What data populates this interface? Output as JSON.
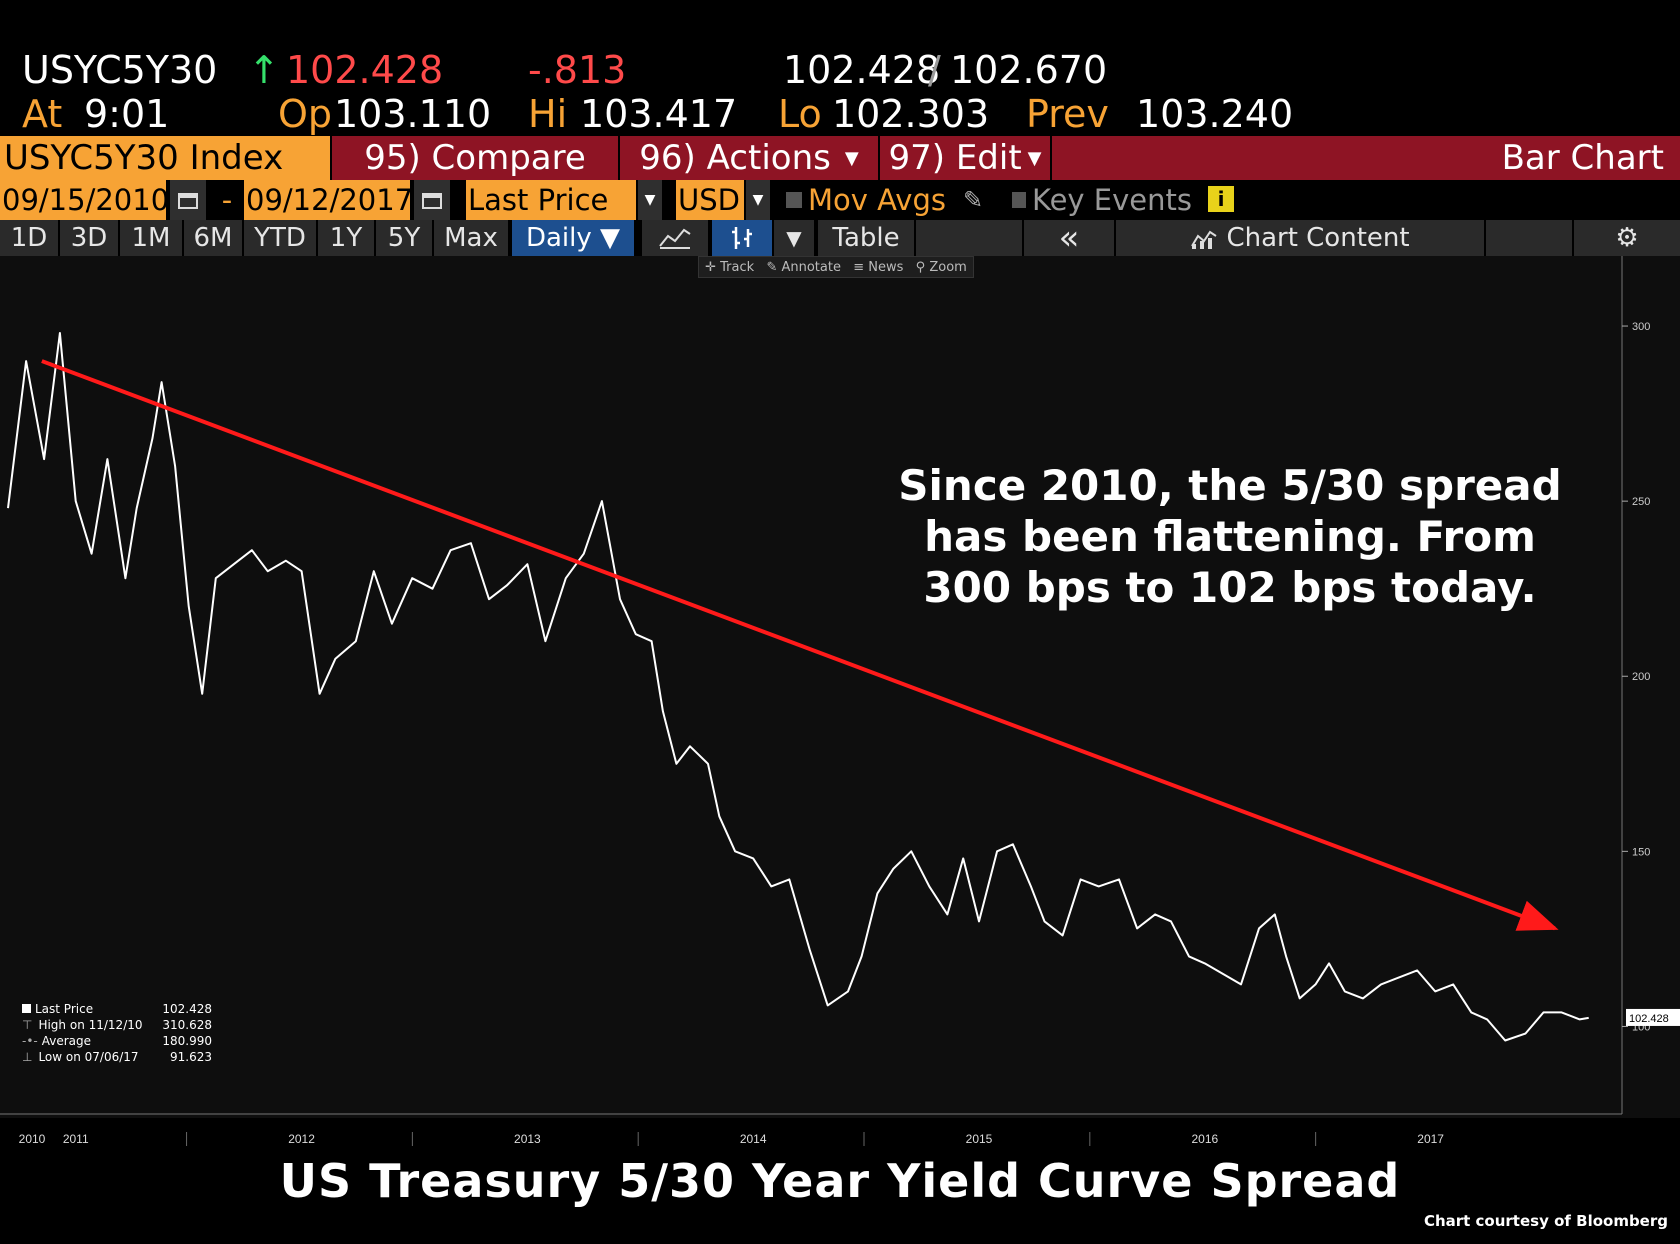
{
  "quote": {
    "ticker": "USYC5Y30",
    "arrow": "↑",
    "last": "102.428",
    "change": "-.813",
    "bid": "102.428",
    "slash": "/",
    "ask": "102.670",
    "at_label": "At",
    "at_time": "9:01",
    "op_label": "Op",
    "op": "103.110",
    "hi_label": "Hi",
    "hi": "103.417",
    "lo_label": "Lo",
    "lo": "102.303",
    "prev_label": "Prev",
    "prev": "103.240"
  },
  "menu_bar": {
    "security": "USYC5Y30 Index",
    "compare": "95) Compare",
    "actions": "96) Actions",
    "edit": "97) Edit",
    "chart_type": "Bar Chart"
  },
  "settings_bar": {
    "start_date": "09/15/2010",
    "dash": "-",
    "end_date": "09/12/2017",
    "field": "Last Price",
    "currency": "USD",
    "mov_avgs": "Mov Avgs",
    "key_events": "Key Events"
  },
  "period_bar": {
    "periods": [
      "1D",
      "3D",
      "1M",
      "6M",
      "YTD",
      "1Y",
      "5Y",
      "Max"
    ],
    "frequency": "Daily ▼",
    "table": "Table",
    "collapse": "«",
    "chart_content": "Chart Content"
  },
  "toolbar": {
    "track": "Track",
    "annotate": "Annotate",
    "news": "News",
    "zoom": "Zoom"
  },
  "legend": {
    "rows": [
      {
        "label": "Last Price",
        "value": "102.428"
      },
      {
        "label": "High on 11/12/10",
        "value": "310.628"
      },
      {
        "label": "Average",
        "value": "180.990"
      },
      {
        "label": "Low on 07/06/17",
        "value": "91.623"
      }
    ]
  },
  "annotation": {
    "line1": "Since 2010, the 5/30 spread",
    "line2": "has been flattening.  From",
    "line3": "300 bps to 102 bps today."
  },
  "footer": {
    "title": "US Treasury 5/30 Year Yield Curve Spread",
    "credit": "Chart courtesy of Bloomberg"
  },
  "colors": {
    "orange": "#f7a335",
    "menu_red": "#8e1424",
    "menu_red_dark": "#6a0f1b",
    "trend_red": "#ff1a1a",
    "active_blue": "#1d4f8f"
  },
  "chart_data": {
    "type": "line",
    "ylim": [
      75,
      320
    ],
    "yticks": [
      100,
      150,
      200,
      250,
      300
    ],
    "xlim": [
      2010.7,
      2017.75
    ],
    "xticks": [
      {
        "label": "2010",
        "x": 2010.7
      },
      {
        "label": "2011",
        "x": 2011.0
      },
      {
        "label": "2012",
        "x": 2012.0
      },
      {
        "label": "2013",
        "x": 2013.0
      },
      {
        "label": "2014",
        "x": 2014.0
      },
      {
        "label": "2015",
        "x": 2015.0
      },
      {
        "label": "2016",
        "x": 2016.0
      },
      {
        "label": "2017",
        "x": 2017.0
      }
    ],
    "last_price_label": "102.428",
    "series": [
      {
        "x": [
          2010.7,
          2010.78,
          2010.86,
          2010.93,
          2011.0,
          2011.07,
          2011.14,
          2011.22,
          2011.27,
          2011.34,
          2011.38,
          2011.44,
          2011.5,
          2011.56,
          2011.62,
          2011.7,
          2011.78,
          2011.85,
          2011.93,
          2012.0,
          2012.08,
          2012.15,
          2012.24,
          2012.32,
          2012.4,
          2012.49,
          2012.58,
          2012.66,
          2012.75,
          2012.83,
          2012.91,
          2013.0,
          2013.08,
          2013.17,
          2013.25,
          2013.33,
          2013.41,
          2013.48,
          2013.55,
          2013.6,
          2013.66,
          2013.72,
          2013.8,
          2013.85,
          2013.92,
          2014.0,
          2014.08,
          2014.16,
          2014.25,
          2014.33,
          2014.42,
          2014.48,
          2014.55,
          2014.62,
          2014.7,
          2014.78,
          2014.86,
          2014.93,
          2015.0,
          2015.08,
          2015.15,
          2015.23,
          2015.29,
          2015.37,
          2015.45,
          2015.53,
          2015.62,
          2015.7,
          2015.78,
          2015.85,
          2015.93,
          2016.0,
          2016.08,
          2016.16,
          2016.24,
          2016.31,
          2016.36,
          2016.42,
          2016.49,
          2016.55,
          2016.62,
          2016.7,
          2016.78,
          2016.86,
          2016.94,
          2017.02,
          2017.1,
          2017.18,
          2017.25,
          2017.33,
          2017.42,
          2017.5,
          2017.58,
          2017.66,
          2017.7
        ],
        "values": [
          248,
          290,
          262,
          298,
          250,
          235,
          262,
          228,
          248,
          268,
          284,
          260,
          220,
          195,
          228,
          232,
          236,
          230,
          233,
          230,
          195,
          205,
          210,
          230,
          215,
          228,
          225,
          236,
          238,
          222,
          226,
          232,
          210,
          228,
          235,
          250,
          222,
          212,
          210,
          190,
          175,
          180,
          175,
          160,
          150,
          148,
          140,
          142,
          122,
          106,
          110,
          120,
          138,
          145,
          150,
          140,
          132,
          148,
          130,
          150,
          152,
          140,
          130,
          126,
          142,
          140,
          142,
          128,
          132,
          130,
          120,
          118,
          115,
          112,
          128,
          132,
          120,
          108,
          112,
          118,
          110,
          108,
          112,
          114,
          116,
          110,
          112,
          104,
          102,
          96,
          98,
          104,
          104,
          102,
          102.428
        ]
      }
    ],
    "trendline": {
      "x": [
        2010.85,
        2017.55
      ],
      "values": [
        290,
        128
      ]
    }
  }
}
